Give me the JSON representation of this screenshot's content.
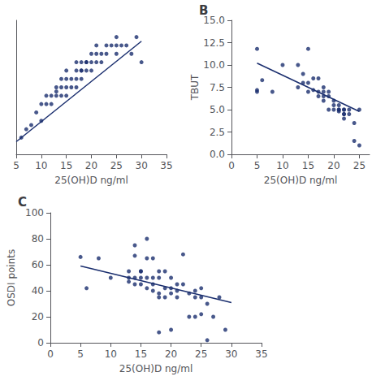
{
  "chart_data": [
    {
      "type": "scatter",
      "xlabel": "25(OH)D ng/ml",
      "xlim": [
        5,
        35
      ],
      "ylim": [
        0,
        16
      ],
      "xticks": [
        5,
        10,
        15,
        20,
        25,
        30,
        35
      ],
      "tick_labels": "x",
      "grid": false,
      "series": [
        {
          "type": "scatter",
          "color": "#1a2e6e",
          "x": [
            6,
            7,
            8,
            9,
            10,
            10,
            11,
            11,
            12,
            12,
            13,
            13,
            13,
            14,
            14,
            14,
            15,
            15,
            15,
            15,
            16,
            16,
            17,
            17,
            17,
            17,
            18,
            18,
            18,
            18,
            19,
            19,
            19,
            20,
            20,
            20,
            21,
            21,
            21,
            22,
            22,
            23,
            23,
            24,
            25,
            25,
            25,
            26,
            27,
            28,
            29,
            30
          ],
          "values": [
            2,
            3,
            3.5,
            5,
            4,
            6,
            6,
            7,
            6,
            7,
            7,
            7.5,
            8,
            7,
            8,
            9,
            7,
            8,
            9,
            10,
            8,
            9,
            8,
            9,
            10,
            11,
            9,
            10,
            10,
            11,
            10,
            11,
            11,
            10,
            11,
            12,
            11,
            12,
            13,
            11,
            12,
            12,
            13,
            13,
            12,
            13,
            14,
            13,
            13,
            12,
            14,
            11
          ]
        },
        {
          "type": "line",
          "color": "#1a2e6e",
          "x": [
            5,
            30
          ],
          "values": [
            1.5,
            13.5
          ]
        }
      ]
    },
    {
      "type": "scatter",
      "title": "B",
      "xlabel": "25(OH)D ng/ml",
      "ylabel": "TBUT",
      "xlim": [
        0,
        27
      ],
      "ylim": [
        0,
        15
      ],
      "xticks": [
        0,
        5,
        10,
        15,
        20,
        25
      ],
      "yticks": [
        {
          "value": 0,
          "label": "0.0"
        },
        2.5,
        {
          "value": 5,
          "label": "5.0"
        },
        7.5,
        {
          "value": 10,
          "label": "10.0"
        },
        12.5,
        {
          "value": 15,
          "label": "15.0"
        }
      ],
      "grid": false,
      "series": [
        {
          "type": "scatter",
          "color": "#1a2e6e",
          "x": [
            5,
            5,
            5,
            6,
            8,
            10,
            13,
            13,
            14,
            14,
            15,
            15,
            15,
            16,
            16,
            17,
            17,
            17,
            18,
            18,
            18,
            18,
            19,
            19,
            19,
            20,
            20,
            20,
            21,
            21,
            21,
            21,
            22,
            22,
            22,
            22,
            22,
            23,
            23,
            24,
            24,
            25,
            25
          ],
          "values": [
            11.8,
            7.2,
            7,
            8.3,
            7,
            10,
            10,
            7.5,
            8,
            9,
            11.8,
            8,
            7,
            7.2,
            8.5,
            8.5,
            7,
            6.5,
            7,
            7.5,
            6.5,
            6,
            7,
            6.5,
            5,
            6,
            5,
            5.5,
            5,
            5,
            4.8,
            5.5,
            5,
            5,
            4.5,
            4,
            4.5,
            5,
            4.5,
            3.5,
            1.5,
            5,
            1
          ]
        },
        {
          "type": "line",
          "color": "#1a2e6e",
          "x": [
            5,
            25
          ],
          "values": [
            10.2,
            4.8
          ]
        }
      ]
    },
    {
      "type": "scatter",
      "title": "C",
      "xlabel": "25(OH)D ng/ml",
      "ylabel": "OSDI points",
      "xlim": [
        0,
        35
      ],
      "ylim": [
        0,
        100
      ],
      "xticks": [
        0,
        5,
        10,
        15,
        20,
        25,
        30,
        35
      ],
      "yticks": [
        0,
        20,
        40,
        60,
        80,
        100
      ],
      "grid": false,
      "series": [
        {
          "type": "scatter",
          "color": "#1a2e6e",
          "x": [
            5,
            6,
            8,
            10,
            13,
            13,
            13,
            14,
            14,
            14,
            14,
            15,
            15,
            15,
            15,
            16,
            16,
            16,
            16,
            17,
            17,
            17,
            17,
            18,
            18,
            18,
            18,
            18,
            19,
            19,
            19,
            20,
            20,
            20,
            20,
            21,
            21,
            21,
            22,
            22,
            23,
            23,
            24,
            24,
            24,
            25,
            25,
            25,
            26,
            26,
            27,
            28,
            29
          ],
          "values": [
            66,
            42,
            65,
            50,
            55,
            50,
            47,
            67,
            75,
            50,
            45,
            55,
            50,
            55,
            45,
            80,
            65,
            50,
            42,
            65,
            50,
            45,
            40,
            55,
            50,
            38,
            35,
            8,
            55,
            42,
            35,
            50,
            42,
            38,
            10,
            45,
            35,
            40,
            45,
            68,
            38,
            20,
            40,
            35,
            20,
            35,
            42,
            22,
            30,
            2,
            20,
            35,
            10
          ]
        },
        {
          "type": "line",
          "color": "#1a2e6e",
          "x": [
            5,
            30
          ],
          "values": [
            59,
            31
          ]
        }
      ]
    }
  ]
}
